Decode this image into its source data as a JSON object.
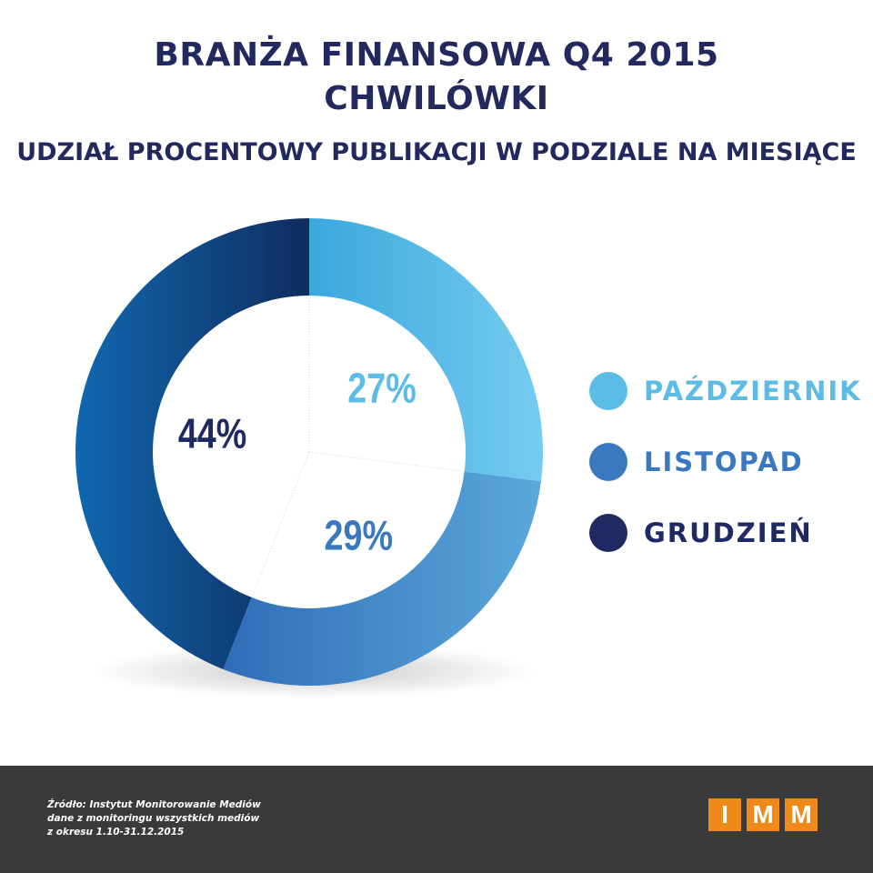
{
  "header": {
    "title_line1": "BRANŻA FINANSOWA Q4 2015",
    "title_line2": "CHWILÓWKI",
    "subtitle": "UDZIAŁ PROCENTOWY PUBLIKACJI W PODZIALE NA MIESIĄCE"
  },
  "chart_data": {
    "type": "pie",
    "variant": "donut",
    "categories": [
      "PAŹDZIERNIK",
      "LISTOPAD",
      "GRUDZIEŃ"
    ],
    "values": [
      27,
      29,
      44
    ],
    "labels": [
      "27%",
      "29%",
      "44%"
    ],
    "colors": [
      "#5bbde6",
      "#3a78c0",
      "#1f2a63"
    ],
    "legend_position": "right"
  },
  "footer": {
    "source_lines": [
      "Źródło: Instytut Monitorowanie Mediów",
      "dane z monitoringu wszystkich mediów",
      "z okresu 1.10-31.12.2015"
    ],
    "logo_letters": [
      "I",
      "M",
      "M"
    ]
  }
}
